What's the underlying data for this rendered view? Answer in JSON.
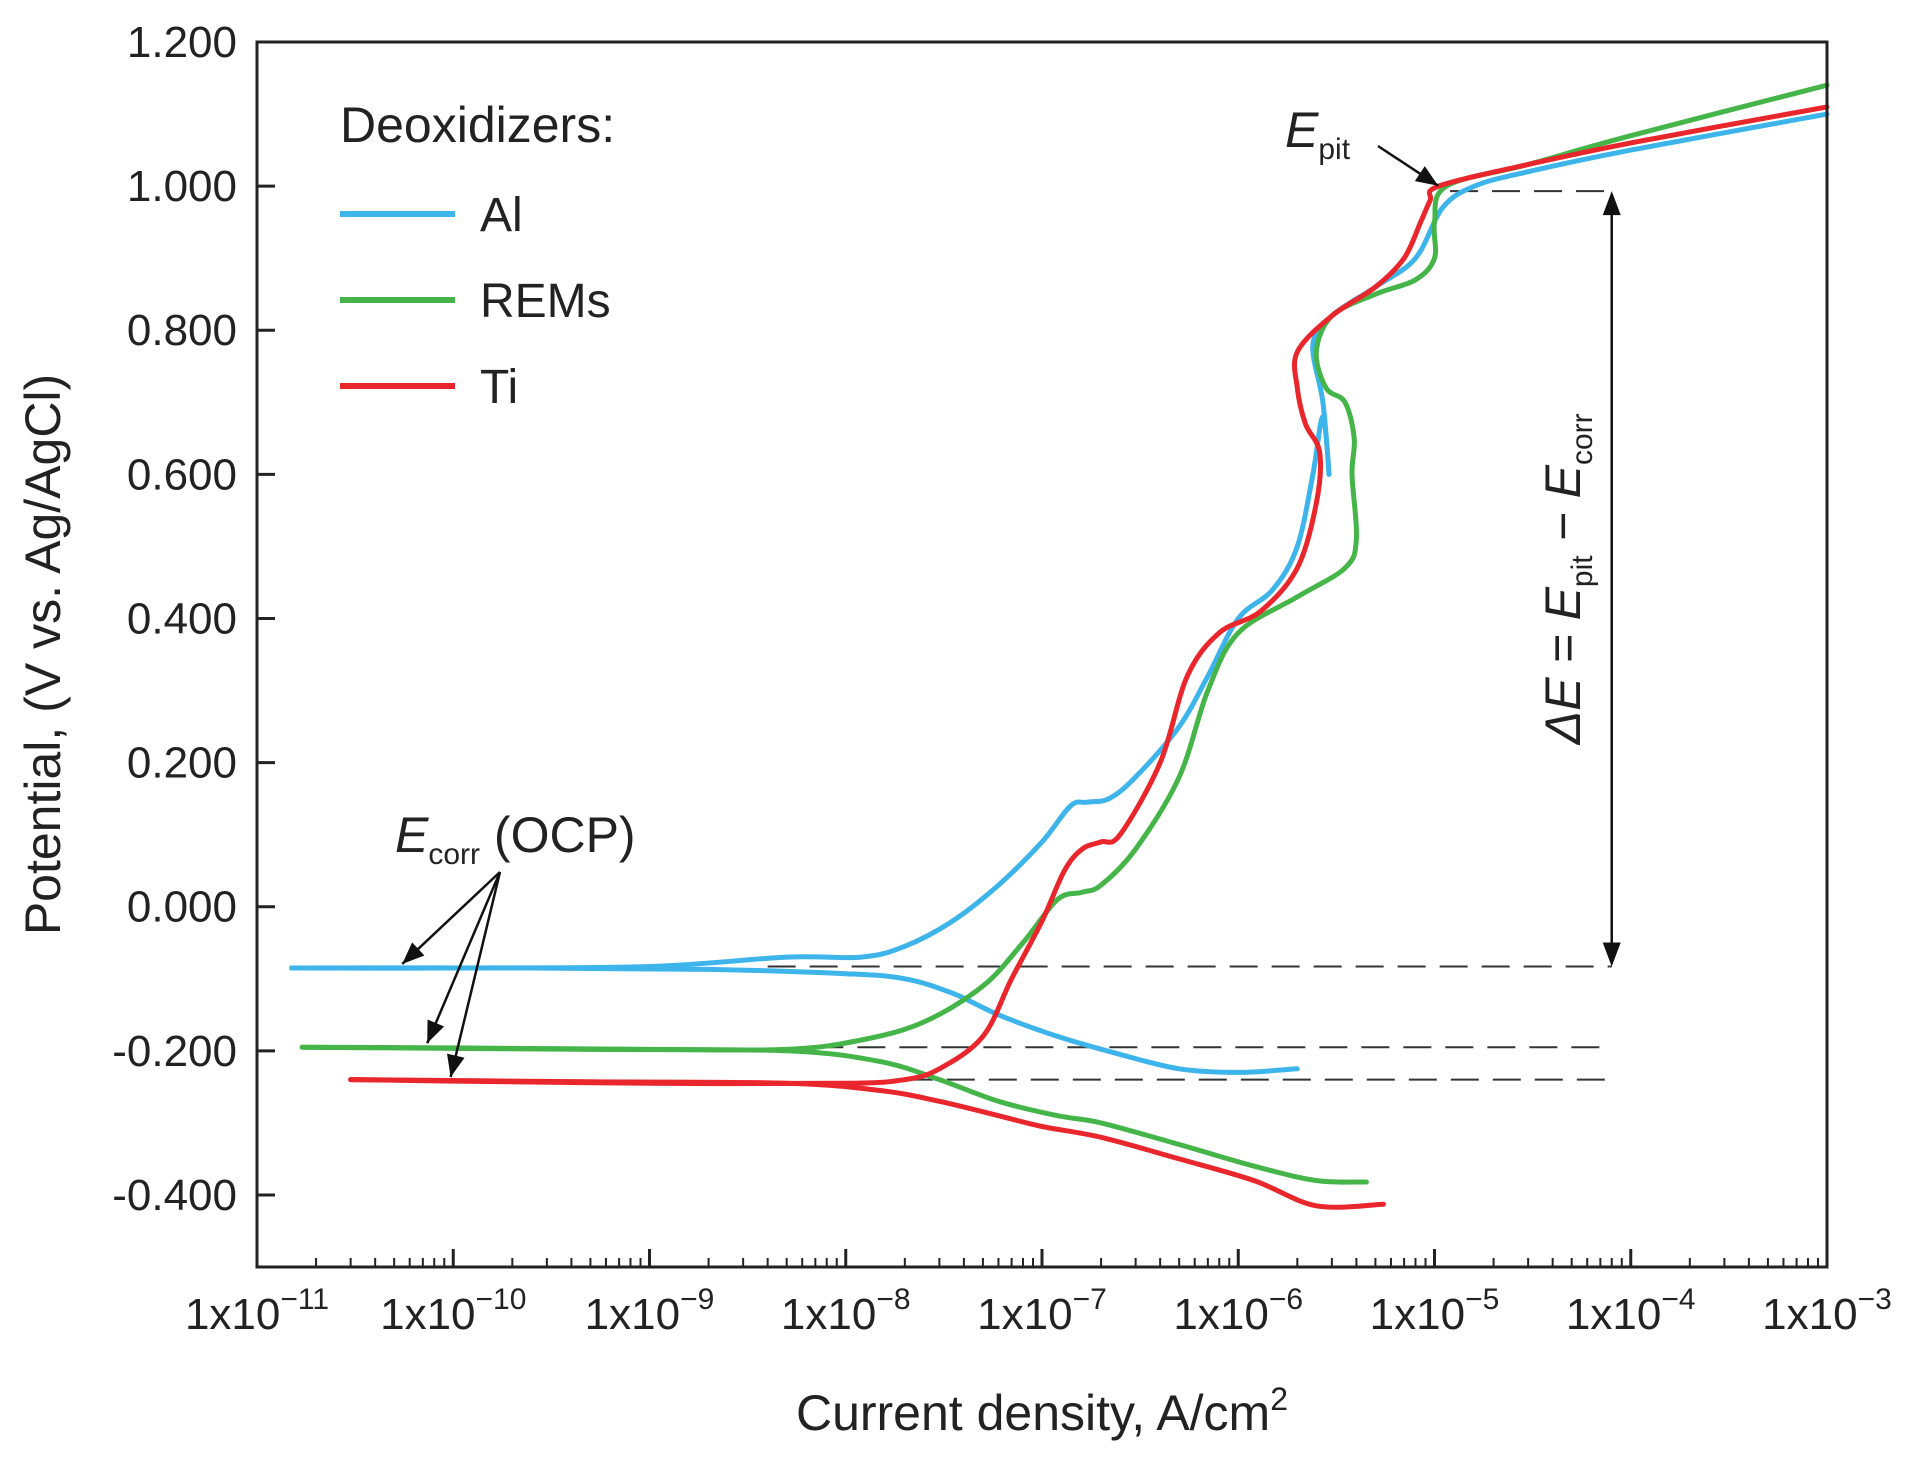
{
  "chart_data": {
    "type": "line",
    "xscale": "log",
    "xlim": [
      1e-11,
      0.001
    ],
    "ylim": [
      -0.5,
      1.2
    ],
    "xlabel": "Current density, A/cm",
    "xlabel_sup": "2",
    "ylabel": "Potential, (V vs. Ag/AgCl)",
    "x_ticks": [
      {
        "value": 1e-11,
        "base": "1x10",
        "exp": "−11"
      },
      {
        "value": 1e-10,
        "base": "1x10",
        "exp": "−10"
      },
      {
        "value": 1e-09,
        "base": "1x10",
        "exp": "−9"
      },
      {
        "value": 1e-08,
        "base": "1x10",
        "exp": "−8"
      },
      {
        "value": 1e-07,
        "base": "1x10",
        "exp": "−7"
      },
      {
        "value": 1e-06,
        "base": "1x10",
        "exp": "−6"
      },
      {
        "value": 1e-05,
        "base": "1x10",
        "exp": "−5"
      },
      {
        "value": 0.0001,
        "base": "1x10",
        "exp": "−4"
      },
      {
        "value": 0.001,
        "base": "1x10",
        "exp": "−3"
      }
    ],
    "y_ticks": [
      {
        "value": 1.2,
        "label": "1.200"
      },
      {
        "value": 1.0,
        "label": "1.000"
      },
      {
        "value": 0.8,
        "label": "0.800"
      },
      {
        "value": 0.6,
        "label": "0.600"
      },
      {
        "value": 0.4,
        "label": "0.400"
      },
      {
        "value": 0.2,
        "label": "0.200"
      },
      {
        "value": 0.0,
        "label": "0.000"
      },
      {
        "value": -0.2,
        "label": "-0.200"
      },
      {
        "value": -0.4,
        "label": "-0.400"
      }
    ],
    "legend": {
      "title": "Deoxidizers:",
      "position": "top-left"
    },
    "series": [
      {
        "name": "Al",
        "color": "#3db4ea",
        "segments": [
          [
            [
              1.5e-11,
              -0.085
            ],
            [
              1e-10,
              -0.085
            ],
            [
              1e-09,
              -0.083
            ],
            [
              5e-09,
              -0.07
            ],
            [
              1.2e-08,
              -0.07
            ],
            [
              2e-08,
              -0.055
            ],
            [
              3.5e-08,
              -0.02
            ],
            [
              6e-08,
              0.03
            ],
            [
              1e-07,
              0.09
            ],
            [
              1.4e-07,
              0.14
            ],
            [
              1.7e-07,
              0.145
            ],
            [
              2.2e-07,
              0.15
            ],
            [
              3e-07,
              0.18
            ],
            [
              5e-07,
              0.25
            ],
            [
              7e-07,
              0.32
            ],
            [
              1e-06,
              0.4
            ],
            [
              1.5e-06,
              0.44
            ],
            [
              2e-06,
              0.5
            ],
            [
              2.4e-06,
              0.6
            ],
            [
              2.7e-06,
              0.68
            ],
            [
              2.9e-06,
              0.6
            ],
            [
              2.7e-06,
              0.7
            ],
            [
              2.4e-06,
              0.78
            ],
            [
              3e-06,
              0.82
            ],
            [
              5e-06,
              0.86
            ],
            [
              8e-06,
              0.9
            ],
            [
              1.1e-05,
              0.97
            ],
            [
              1.6e-05,
              1.0
            ],
            [
              3e-05,
              1.02
            ],
            [
              0.0001,
              1.05
            ],
            [
              0.001,
              1.1
            ]
          ],
          [
            [
              1.5e-11,
              -0.085
            ],
            [
              2e-10,
              -0.085
            ],
            [
              2e-09,
              -0.087
            ],
            [
              1e-08,
              -0.093
            ],
            [
              2e-08,
              -0.1
            ],
            [
              3.5e-08,
              -0.12
            ],
            [
              6e-08,
              -0.15
            ],
            [
              1.2e-07,
              -0.18
            ],
            [
              2.5e-07,
              -0.205
            ],
            [
              5e-07,
              -0.225
            ],
            [
              1e-06,
              -0.23
            ],
            [
              2e-06,
              -0.225
            ]
          ]
        ]
      },
      {
        "name": "REMs",
        "color": "#45b549",
        "segments": [
          [
            [
              1.7e-11,
              -0.195
            ],
            [
              1e-10,
              -0.196
            ],
            [
              1e-09,
              -0.198
            ],
            [
              5e-09,
              -0.198
            ],
            [
              1.2e-08,
              -0.185
            ],
            [
              2.5e-08,
              -0.16
            ],
            [
              5e-08,
              -0.11
            ],
            [
              8e-08,
              -0.05
            ],
            [
              1.2e-07,
              0.01
            ],
            [
              1.6e-07,
              0.02
            ],
            [
              2e-07,
              0.03
            ],
            [
              3e-07,
              0.08
            ],
            [
              5e-07,
              0.18
            ],
            [
              7e-07,
              0.3
            ],
            [
              1e-06,
              0.38
            ],
            [
              2e-06,
              0.43
            ],
            [
              3.5e-06,
              0.47
            ],
            [
              4e-06,
              0.51
            ],
            [
              3.8e-06,
              0.6
            ],
            [
              3.9e-06,
              0.65
            ],
            [
              3.5e-06,
              0.7
            ],
            [
              2.8e-06,
              0.72
            ],
            [
              2.5e-06,
              0.77
            ],
            [
              3e-06,
              0.82
            ],
            [
              5e-06,
              0.85
            ],
            [
              8e-06,
              0.87
            ],
            [
              1e-05,
              0.9
            ],
            [
              1e-05,
              0.95
            ],
            [
              1.15e-05,
              1.0
            ],
            [
              3e-05,
              1.03
            ],
            [
              0.0001,
              1.07
            ],
            [
              0.001,
              1.14
            ]
          ],
          [
            [
              1.7e-11,
              -0.195
            ],
            [
              5e-10,
              -0.198
            ],
            [
              5e-09,
              -0.2
            ],
            [
              1.5e-08,
              -0.215
            ],
            [
              3e-08,
              -0.24
            ],
            [
              6e-08,
              -0.27
            ],
            [
              1.2e-07,
              -0.29
            ],
            [
              2e-07,
              -0.3
            ],
            [
              5e-07,
              -0.33
            ],
            [
              1.2e-06,
              -0.36
            ],
            [
              2.5e-06,
              -0.38
            ],
            [
              4.5e-06,
              -0.382
            ]
          ]
        ]
      },
      {
        "name": "Ti",
        "color": "#e8262c",
        "segments": [
          [
            [
              3e-11,
              -0.24
            ],
            [
              1e-10,
              -0.242
            ],
            [
              1e-09,
              -0.245
            ],
            [
              1e-08,
              -0.245
            ],
            [
              2e-08,
              -0.24
            ],
            [
              3e-08,
              -0.225
            ],
            [
              5e-08,
              -0.18
            ],
            [
              7e-08,
              -0.1
            ],
            [
              1e-07,
              -0.02
            ],
            [
              1.3e-07,
              0.05
            ],
            [
              1.6e-07,
              0.08
            ],
            [
              2e-07,
              0.09
            ],
            [
              2.5e-07,
              0.1
            ],
            [
              4e-07,
              0.2
            ],
            [
              5.5e-07,
              0.32
            ],
            [
              8e-07,
              0.38
            ],
            [
              1.3e-06,
              0.41
            ],
            [
              2e-06,
              0.47
            ],
            [
              2.5e-06,
              0.56
            ],
            [
              2.6e-06,
              0.63
            ],
            [
              2.2e-06,
              0.67
            ],
            [
              2e-06,
              0.72
            ],
            [
              2e-06,
              0.77
            ],
            [
              3e-06,
              0.82
            ],
            [
              5e-06,
              0.86
            ],
            [
              7e-06,
              0.9
            ],
            [
              8.5e-06,
              0.95
            ],
            [
              9.5e-06,
              0.98
            ],
            [
              1.05e-05,
              1.0
            ],
            [
              3e-05,
              1.03
            ],
            [
              0.0001,
              1.06
            ],
            [
              0.001,
              1.11
            ]
          ],
          [
            [
              3e-11,
              -0.24
            ],
            [
              5e-10,
              -0.243
            ],
            [
              5e-09,
              -0.245
            ],
            [
              1.5e-08,
              -0.255
            ],
            [
              3e-08,
              -0.27
            ],
            [
              6e-08,
              -0.29
            ],
            [
              1e-07,
              -0.305
            ],
            [
              2e-07,
              -0.32
            ],
            [
              5e-07,
              -0.35
            ],
            [
              1.2e-06,
              -0.38
            ],
            [
              2.5e-06,
              -0.415
            ],
            [
              5.5e-06,
              -0.413
            ]
          ]
        ]
      }
    ],
    "guides": [
      {
        "y": 0.993,
        "from": 1.2e-05,
        "to": 8e-05
      },
      {
        "y": -0.083,
        "from": 4e-09,
        "to": 8e-05
      },
      {
        "y": -0.195,
        "from": 7e-09,
        "to": 8e-05
      },
      {
        "y": -0.24,
        "from": 2e-08,
        "to": 8e-05
      }
    ],
    "delta_arrow": {
      "x": 8e-05,
      "y_top": 0.993,
      "y_bottom": -0.083
    },
    "annotations": {
      "ecorr_main": "E",
      "ecorr_sub": "corr",
      "ecorr_suffix": " (OCP)",
      "epit_main": "E",
      "epit_sub": "pit",
      "delta_prefix": "ΔE = E",
      "delta_sub1": "pit",
      "delta_mid": " − E",
      "delta_sub2": "corr"
    }
  }
}
